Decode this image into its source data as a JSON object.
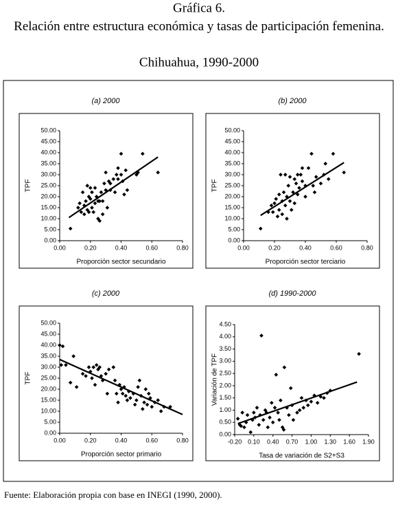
{
  "header": {
    "title": "Gráfica 6.",
    "subtitle": "Relación entre estructura económica y tasas de participación femenina.",
    "place": "Chihuahua, 1990-2000"
  },
  "chart_data": [
    {
      "type": "scatter",
      "title": "(a) 2000",
      "x_label": "Proporción sector secundario",
      "y_label": "TPF",
      "color": "#000000",
      "x": [
        0.07,
        0.12,
        0.13,
        0.14,
        0.15,
        0.16,
        0.16,
        0.17,
        0.18,
        0.18,
        0.19,
        0.19,
        0.2,
        0.2,
        0.21,
        0.21,
        0.22,
        0.23,
        0.23,
        0.24,
        0.25,
        0.25,
        0.26,
        0.26,
        0.27,
        0.28,
        0.28,
        0.29,
        0.3,
        0.3,
        0.31,
        0.32,
        0.33,
        0.33,
        0.35,
        0.36,
        0.37,
        0.38,
        0.38,
        0.4,
        0.4,
        0.41,
        0.42,
        0.43,
        0.44,
        0.5,
        0.51,
        0.54,
        0.64
      ],
      "values": [
        5.5,
        15,
        17,
        13,
        22,
        12,
        16,
        18,
        14,
        25,
        20,
        13,
        24,
        19,
        15,
        22,
        13,
        17,
        24,
        20,
        18,
        10,
        18,
        9,
        22,
        12,
        18,
        26,
        23,
        31,
        15,
        27,
        23,
        26,
        28,
        22,
        30,
        33,
        28,
        39.5,
        30,
        27,
        21,
        32,
        23,
        30,
        31,
        39.5,
        31
      ],
      "trendline": {
        "x": [
          0.06,
          0.64
        ],
        "y": [
          10.5,
          38
        ]
      },
      "xlim": [
        0,
        0.8
      ],
      "ylim": [
        0,
        50
      ],
      "xticks": [
        {
          "value": 0,
          "label": "0.00"
        },
        {
          "value": 0.2,
          "label": "0.20"
        },
        {
          "value": 0.4,
          "label": "0.40"
        },
        {
          "value": 0.6,
          "label": "0.60"
        },
        {
          "value": 0.8,
          "label": "0.80"
        }
      ],
      "yticks": [
        {
          "value": 0,
          "label": "0.00"
        },
        {
          "value": 5,
          "label": "5.00"
        },
        {
          "value": 10,
          "label": "10.00"
        },
        {
          "value": 15,
          "label": "15.00"
        },
        {
          "value": 20,
          "label": "20.00"
        },
        {
          "value": 25,
          "label": "25.00"
        },
        {
          "value": 30,
          "label": "30.00"
        },
        {
          "value": 35,
          "label": "35.00"
        },
        {
          "value": 40,
          "label": "40.00"
        },
        {
          "value": 45,
          "label": "45.00"
        },
        {
          "value": 50,
          "label": "50.00"
        }
      ]
    },
    {
      "type": "scatter",
      "title": "(b) 2000",
      "x_label": "Proporción sector terciario",
      "y_label": "TPF",
      "color": "#000000",
      "x": [
        0.11,
        0.16,
        0.18,
        0.19,
        0.2,
        0.21,
        0.22,
        0.23,
        0.23,
        0.24,
        0.25,
        0.25,
        0.26,
        0.27,
        0.27,
        0.28,
        0.28,
        0.29,
        0.3,
        0.3,
        0.31,
        0.32,
        0.33,
        0.33,
        0.34,
        0.35,
        0.35,
        0.36,
        0.37,
        0.38,
        0.38,
        0.4,
        0.4,
        0.42,
        0.44,
        0.45,
        0.46,
        0.47,
        0.5,
        0.52,
        0.53,
        0.55,
        0.58,
        0.65
      ],
      "values": [
        5.5,
        13,
        16,
        13,
        17,
        19,
        11,
        21,
        14,
        30,
        18,
        12,
        22,
        30,
        16,
        10,
        20,
        25,
        18,
        29,
        14,
        22,
        17,
        28,
        26,
        30,
        21,
        24,
        30,
        27,
        33,
        20,
        25,
        33,
        39.5,
        25,
        22,
        29,
        26,
        30,
        35,
        28,
        39.5,
        31
      ],
      "trendline": {
        "x": [
          0.11,
          0.65
        ],
        "y": [
          11.5,
          35.5
        ]
      },
      "xlim": [
        0,
        0.8
      ],
      "ylim": [
        0,
        50
      ],
      "xticks": [
        {
          "value": 0,
          "label": "0.00"
        },
        {
          "value": 0.2,
          "label": "0.20"
        },
        {
          "value": 0.4,
          "label": "0.40"
        },
        {
          "value": 0.6,
          "label": "0.60"
        },
        {
          "value": 0.8,
          "label": "0.80"
        }
      ],
      "yticks": [
        {
          "value": 0,
          "label": "0.00"
        },
        {
          "value": 5,
          "label": "5.00"
        },
        {
          "value": 10,
          "label": "10.00"
        },
        {
          "value": 15,
          "label": "15.00"
        },
        {
          "value": 20,
          "label": "20.00"
        },
        {
          "value": 25,
          "label": "25.00"
        },
        {
          "value": 30,
          "label": "30.00"
        },
        {
          "value": 35,
          "label": "35.00"
        },
        {
          "value": 40,
          "label": "40.00"
        },
        {
          "value": 45,
          "label": "45.00"
        },
        {
          "value": 50,
          "label": "50.00"
        }
      ]
    },
    {
      "type": "scatter",
      "title": "(c) 2000",
      "x_label": "Proporción sector primario",
      "y_label": "TPF",
      "color": "#000000",
      "x": [
        0,
        0.01,
        0.02,
        0.04,
        0.07,
        0.09,
        0.11,
        0.15,
        0.17,
        0.19,
        0.2,
        0.21,
        0.22,
        0.23,
        0.24,
        0.25,
        0.26,
        0.27,
        0.28,
        0.3,
        0.31,
        0.32,
        0.35,
        0.36,
        0.37,
        0.38,
        0.39,
        0.4,
        0.41,
        0.42,
        0.43,
        0.44,
        0.45,
        0.46,
        0.48,
        0.49,
        0.5,
        0.51,
        0.52,
        0.53,
        0.54,
        0.55,
        0.56,
        0.57,
        0.58,
        0.59,
        0.6,
        0.62,
        0.64,
        0.66,
        0.68,
        0.72
      ],
      "values": [
        40,
        31,
        39.5,
        31,
        23,
        35,
        21,
        27,
        26,
        30,
        28,
        25,
        30,
        22,
        31,
        29,
        30,
        26,
        24,
        27,
        18,
        29,
        30,
        24,
        18,
        14,
        22,
        20,
        18,
        21,
        17,
        15,
        19,
        16,
        18,
        13,
        15,
        21,
        24,
        17,
        11,
        14,
        20,
        13,
        18,
        16,
        12,
        14,
        15,
        10,
        12,
        12
      ],
      "trendline": {
        "x": [
          0,
          0.8
        ],
        "y": [
          33.5,
          8.5
        ]
      },
      "xlim": [
        0,
        0.8
      ],
      "ylim": [
        0,
        50
      ],
      "xticks": [
        {
          "value": 0,
          "label": "0.00"
        },
        {
          "value": 0.2,
          "label": "0.20"
        },
        {
          "value": 0.4,
          "label": "0.40"
        },
        {
          "value": 0.6,
          "label": "0.60"
        },
        {
          "value": 0.8,
          "label": "0.80"
        }
      ],
      "yticks": [
        {
          "value": 0,
          "label": "0.00"
        },
        {
          "value": 5,
          "label": "5.00"
        },
        {
          "value": 10,
          "label": "10.00"
        },
        {
          "value": 15,
          "label": "15.00"
        },
        {
          "value": 20,
          "label": "20.00"
        },
        {
          "value": 25,
          "label": "25.00"
        },
        {
          "value": 30,
          "label": "30.00"
        },
        {
          "value": 35,
          "label": "35.00"
        },
        {
          "value": 40,
          "label": "40.00"
        },
        {
          "value": 45,
          "label": "45.00"
        },
        {
          "value": 50,
          "label": "50.00"
        }
      ]
    },
    {
      "type": "scatter",
      "title": "(d) 1990-2000",
      "x_label": "Tasa de variación de S2+S3",
      "y_label": "Variación de TPF",
      "color": "#000000",
      "x": [
        -0.15,
        -0.12,
        -0.1,
        -0.08,
        -0.05,
        -0.02,
        0,
        0.05,
        0.08,
        0.1,
        0.12,
        0.15,
        0.18,
        0.2,
        0.22,
        0.25,
        0.28,
        0.3,
        0.32,
        0.35,
        0.38,
        0.4,
        0.43,
        0.45,
        0.48,
        0.5,
        0.52,
        0.55,
        0.57,
        0.58,
        0.62,
        0.65,
        0.68,
        0.7,
        0.72,
        0.78,
        0.82,
        0.85,
        0.88,
        0.92,
        0.95,
        1,
        1.05,
        1.1,
        1.15,
        1.2,
        1.25,
        1.3,
        1.75
      ],
      "values": [
        0.65,
        0.4,
        0.35,
        0.9,
        0.3,
        0.5,
        0.8,
        0.1,
        0.6,
        0.9,
        0.7,
        1.1,
        0.4,
        0.8,
        4.05,
        0.6,
        1,
        0.9,
        0.3,
        0.7,
        1.3,
        0.5,
        1.1,
        2.45,
        0.9,
        0.6,
        1.4,
        0.3,
        0.2,
        2.75,
        1.1,
        0.8,
        1.9,
        1.2,
        0.6,
        0.9,
        1,
        1.5,
        1.1,
        1.4,
        1.2,
        1.35,
        1.6,
        1.3,
        1.55,
        1.5,
        1.7,
        1.8,
        3.3
      ],
      "trendline": {
        "x": [
          -0.15,
          1.72
        ],
        "y": [
          0.45,
          2.15
        ]
      },
      "xlim": [
        -0.2,
        1.9
      ],
      "ylim": [
        0,
        4.5
      ],
      "xticks": [
        {
          "value": -0.2,
          "label": "-0.20"
        },
        {
          "value": 0.1,
          "label": "0.10"
        },
        {
          "value": 0.4,
          "label": "0.40"
        },
        {
          "value": 0.7,
          "label": "0.70"
        },
        {
          "value": 1,
          "label": "1.00"
        },
        {
          "value": 1.3,
          "label": "1.30"
        },
        {
          "value": 1.6,
          "label": "1.60"
        },
        {
          "value": 1.9,
          "label": "1.90"
        }
      ],
      "yticks": [
        {
          "value": 0,
          "label": "0.00"
        },
        {
          "value": 0.5,
          "label": "0.50"
        },
        {
          "value": 1,
          "label": "1.00"
        },
        {
          "value": 1.5,
          "label": "1.50"
        },
        {
          "value": 2,
          "label": "2.00"
        },
        {
          "value": 2.5,
          "label": "2.50"
        },
        {
          "value": 3,
          "label": "3.00"
        },
        {
          "value": 3.5,
          "label": "3.50"
        },
        {
          "value": 4,
          "label": "4.00"
        },
        {
          "value": 4.5,
          "label": "4.50"
        }
      ]
    }
  ],
  "footer": "Fuente: Elaboración propia con base en INEGI (1990, 2000)."
}
